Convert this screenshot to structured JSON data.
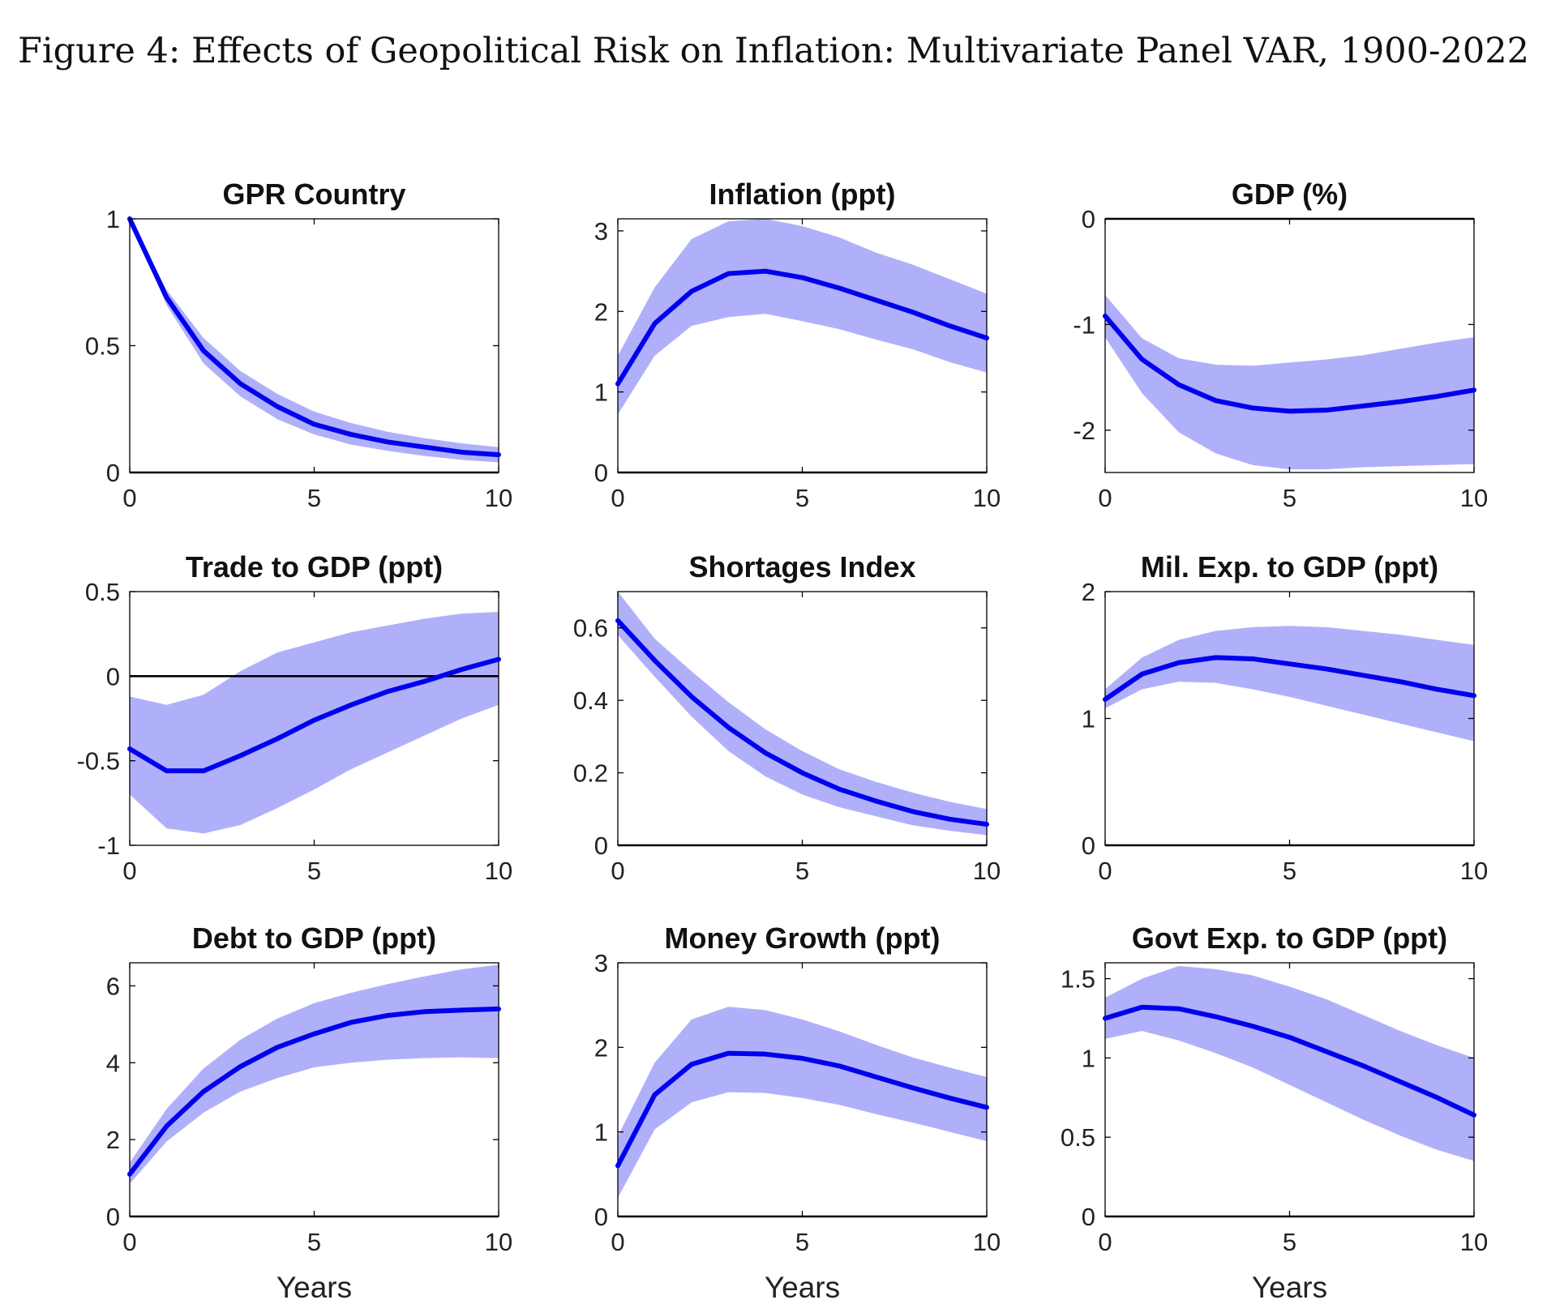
{
  "figure_title": "Figure 4: Effects of Geopolitical Risk on Inflation: Multivariate Panel VAR, 1900-2022",
  "colors": {
    "line": "#0000ee",
    "band": "#b0b0fa",
    "axis": "#000000"
  },
  "chart_data": [
    {
      "type": "line",
      "title": "GPR Country",
      "xlabel": "",
      "x": [
        0,
        1,
        2,
        3,
        4,
        5,
        6,
        7,
        8,
        9,
        10
      ],
      "xlim": [
        0,
        10
      ],
      "xticks": [
        0,
        5,
        10
      ],
      "ylim": [
        0,
        1
      ],
      "yticks": [
        0,
        0.5,
        1
      ],
      "ytick_labels": [
        "0",
        "0.5",
        "1"
      ],
      "zero_line": true,
      "series": [
        {
          "values": [
            1.0,
            0.69,
            0.48,
            0.35,
            0.26,
            0.19,
            0.15,
            0.12,
            0.1,
            0.08,
            0.07
          ]
        }
      ],
      "band": {
        "lower": [
          1.0,
          0.66,
          0.43,
          0.3,
          0.21,
          0.15,
          0.11,
          0.085,
          0.065,
          0.05,
          0.04
        ],
        "upper": [
          1.0,
          0.72,
          0.53,
          0.4,
          0.31,
          0.24,
          0.195,
          0.16,
          0.135,
          0.115,
          0.1
        ]
      }
    },
    {
      "type": "line",
      "title": "Inflation (ppt)",
      "xlabel": "",
      "x": [
        0,
        1,
        2,
        3,
        4,
        5,
        6,
        7,
        8,
        9,
        10
      ],
      "xlim": [
        0,
        10
      ],
      "xticks": [
        0,
        5,
        10
      ],
      "ylim": [
        0,
        3.15
      ],
      "yticks": [
        0,
        1,
        2,
        3
      ],
      "ytick_labels": [
        "0",
        "1",
        "2",
        "3"
      ],
      "zero_line": true,
      "series": [
        {
          "values": [
            1.1,
            1.85,
            2.25,
            2.47,
            2.5,
            2.42,
            2.29,
            2.14,
            1.99,
            1.82,
            1.67
          ]
        }
      ],
      "band": {
        "lower": [
          0.72,
          1.45,
          1.82,
          1.93,
          1.97,
          1.88,
          1.78,
          1.65,
          1.53,
          1.37,
          1.24
        ],
        "upper": [
          1.45,
          2.3,
          2.9,
          3.12,
          3.15,
          3.06,
          2.92,
          2.73,
          2.58,
          2.4,
          2.22
        ]
      }
    },
    {
      "type": "line",
      "title": "GDP (%)",
      "xlabel": "",
      "x": [
        0,
        1,
        2,
        3,
        4,
        5,
        6,
        7,
        8,
        9,
        10
      ],
      "xlim": [
        0,
        10
      ],
      "xticks": [
        0,
        5,
        10
      ],
      "ylim": [
        -2.4,
        0
      ],
      "yticks": [
        -2,
        -1,
        0
      ],
      "ytick_labels": [
        "-2",
        "-1",
        "0"
      ],
      "zero_line": true,
      "series": [
        {
          "values": [
            -0.92,
            -1.33,
            -1.57,
            -1.72,
            -1.79,
            -1.82,
            -1.81,
            -1.77,
            -1.73,
            -1.68,
            -1.62
          ]
        }
      ],
      "band": {
        "lower": [
          -1.12,
          -1.65,
          -2.02,
          -2.22,
          -2.33,
          -2.37,
          -2.37,
          -2.35,
          -2.34,
          -2.33,
          -2.32
        ],
        "upper": [
          -0.72,
          -1.13,
          -1.32,
          -1.38,
          -1.39,
          -1.36,
          -1.33,
          -1.29,
          -1.23,
          -1.17,
          -1.12
        ]
      }
    },
    {
      "type": "line",
      "title": "Trade to GDP (ppt)",
      "xlabel": "",
      "x": [
        0,
        1,
        2,
        3,
        4,
        5,
        6,
        7,
        8,
        9,
        10
      ],
      "xlim": [
        0,
        10
      ],
      "xticks": [
        0,
        5,
        10
      ],
      "ylim": [
        -1,
        0.5
      ],
      "yticks": [
        -1,
        -0.5,
        0,
        0.5
      ],
      "ytick_labels": [
        "-1",
        "-0.5",
        "0",
        "0.5"
      ],
      "zero_line": true,
      "series": [
        {
          "values": [
            -0.43,
            -0.56,
            -0.56,
            -0.47,
            -0.37,
            -0.26,
            -0.17,
            -0.09,
            -0.03,
            0.04,
            0.1
          ]
        }
      ],
      "band": {
        "lower": [
          -0.7,
          -0.9,
          -0.93,
          -0.88,
          -0.78,
          -0.67,
          -0.55,
          -0.45,
          -0.35,
          -0.25,
          -0.17
        ],
        "upper": [
          -0.12,
          -0.17,
          -0.11,
          0.03,
          0.14,
          0.2,
          0.26,
          0.3,
          0.34,
          0.37,
          0.38
        ]
      }
    },
    {
      "type": "line",
      "title": "Shortages Index",
      "xlabel": "",
      "x": [
        0,
        1,
        2,
        3,
        4,
        5,
        6,
        7,
        8,
        9,
        10
      ],
      "xlim": [
        0,
        10
      ],
      "xticks": [
        0,
        5,
        10
      ],
      "ylim": [
        0,
        0.7
      ],
      "yticks": [
        0,
        0.2,
        0.4,
        0.6
      ],
      "ytick_labels": [
        "0",
        "0.2",
        "0.4",
        "0.6"
      ],
      "zero_line": true,
      "series": [
        {
          "values": [
            0.62,
            0.51,
            0.41,
            0.325,
            0.255,
            0.2,
            0.155,
            0.122,
            0.093,
            0.072,
            0.058
          ]
        }
      ],
      "band": {
        "lower": [
          0.58,
          0.465,
          0.355,
          0.26,
          0.19,
          0.14,
          0.105,
          0.08,
          0.055,
          0.04,
          0.028
        ],
        "upper": [
          0.7,
          0.57,
          0.48,
          0.395,
          0.32,
          0.26,
          0.21,
          0.175,
          0.145,
          0.12,
          0.1
        ]
      }
    },
    {
      "type": "line",
      "title": "Mil. Exp. to GDP (ppt)",
      "xlabel": "",
      "x": [
        0,
        1,
        2,
        3,
        4,
        5,
        6,
        7,
        8,
        9,
        10
      ],
      "xlim": [
        0,
        10
      ],
      "xticks": [
        0,
        5,
        10
      ],
      "ylim": [
        0,
        2
      ],
      "yticks": [
        0,
        1,
        2
      ],
      "ytick_labels": [
        "0",
        "1",
        "2"
      ],
      "zero_line": true,
      "series": [
        {
          "values": [
            1.15,
            1.35,
            1.44,
            1.48,
            1.47,
            1.43,
            1.39,
            1.34,
            1.29,
            1.23,
            1.18
          ]
        }
      ],
      "band": {
        "lower": [
          1.08,
          1.23,
          1.29,
          1.28,
          1.23,
          1.17,
          1.1,
          1.03,
          0.96,
          0.89,
          0.82
        ],
        "upper": [
          1.23,
          1.48,
          1.62,
          1.69,
          1.72,
          1.73,
          1.72,
          1.69,
          1.66,
          1.62,
          1.58
        ]
      }
    },
    {
      "type": "line",
      "title": "Debt to GDP (ppt)",
      "xlabel": "Years",
      "x": [
        0,
        1,
        2,
        3,
        4,
        5,
        6,
        7,
        8,
        9,
        10
      ],
      "xlim": [
        0,
        10
      ],
      "xticks": [
        0,
        5,
        10
      ],
      "ylim": [
        0,
        6.6
      ],
      "yticks": [
        0,
        2,
        4,
        6
      ],
      "ytick_labels": [
        "0",
        "2",
        "4",
        "6"
      ],
      "zero_line": true,
      "series": [
        {
          "values": [
            1.1,
            2.35,
            3.25,
            3.9,
            4.4,
            4.75,
            5.05,
            5.23,
            5.33,
            5.37,
            5.4
          ]
        }
      ],
      "band": {
        "lower": [
          0.85,
          1.95,
          2.7,
          3.25,
          3.6,
          3.88,
          4.0,
          4.08,
          4.12,
          4.14,
          4.12
        ],
        "upper": [
          1.4,
          2.8,
          3.85,
          4.6,
          5.15,
          5.55,
          5.82,
          6.05,
          6.25,
          6.43,
          6.55
        ]
      }
    },
    {
      "type": "line",
      "title": "Money Growth (ppt)",
      "xlabel": "Years",
      "x": [
        0,
        1,
        2,
        3,
        4,
        5,
        6,
        7,
        8,
        9,
        10
      ],
      "xlim": [
        0,
        10
      ],
      "xticks": [
        0,
        5,
        10
      ],
      "ylim": [
        0,
        3
      ],
      "yticks": [
        0,
        1,
        2,
        3
      ],
      "ytick_labels": [
        "0",
        "1",
        "2",
        "3"
      ],
      "zero_line": true,
      "series": [
        {
          "values": [
            0.6,
            1.44,
            1.8,
            1.93,
            1.92,
            1.87,
            1.78,
            1.65,
            1.52,
            1.4,
            1.29
          ]
        }
      ],
      "band": {
        "lower": [
          0.22,
          1.03,
          1.35,
          1.47,
          1.46,
          1.4,
          1.32,
          1.21,
          1.11,
          1.0,
          0.89
        ],
        "upper": [
          0.95,
          1.82,
          2.33,
          2.48,
          2.44,
          2.33,
          2.19,
          2.03,
          1.88,
          1.76,
          1.65
        ]
      }
    },
    {
      "type": "line",
      "title": "Govt Exp. to GDP (ppt)",
      "xlabel": "Years",
      "x": [
        0,
        1,
        2,
        3,
        4,
        5,
        6,
        7,
        8,
        9,
        10
      ],
      "xlim": [
        0,
        10
      ],
      "xticks": [
        0,
        5,
        10
      ],
      "ylim": [
        0,
        1.6
      ],
      "yticks": [
        0,
        0.5,
        1,
        1.5
      ],
      "ytick_labels": [
        "0",
        "0.5",
        "1",
        "1.5"
      ],
      "zero_line": true,
      "series": [
        {
          "values": [
            1.25,
            1.32,
            1.31,
            1.26,
            1.2,
            1.13,
            1.04,
            0.95,
            0.85,
            0.75,
            0.64
          ]
        }
      ],
      "band": {
        "lower": [
          1.12,
          1.17,
          1.11,
          1.03,
          0.94,
          0.83,
          0.72,
          0.61,
          0.51,
          0.42,
          0.35
        ],
        "upper": [
          1.38,
          1.5,
          1.58,
          1.56,
          1.52,
          1.45,
          1.37,
          1.27,
          1.17,
          1.08,
          1.0
        ]
      }
    }
  ]
}
